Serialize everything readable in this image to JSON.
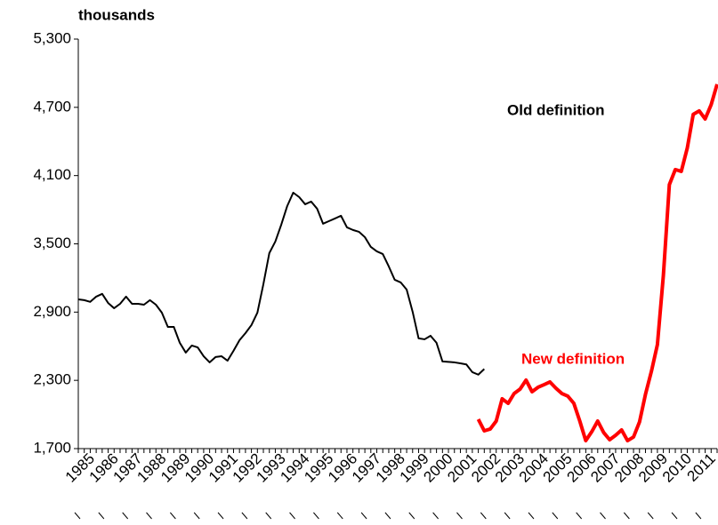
{
  "chart_data": {
    "type": "line",
    "y_label": "thousands",
    "ylim": [
      1700,
      5300
    ],
    "yticks": [
      {
        "value": 1700,
        "label": "1,700"
      },
      {
        "value": 2300,
        "label": "2,300"
      },
      {
        "value": 2900,
        "label": "2,900"
      },
      {
        "value": 3500,
        "label": "3,500"
      },
      {
        "value": 4100,
        "label": "4,100"
      },
      {
        "value": 4700,
        "label": "4,700"
      },
      {
        "value": 5300,
        "label": "5,300"
      }
    ],
    "categories": [
      "1985",
      null,
      null,
      null,
      "1986",
      null,
      null,
      null,
      "1987",
      null,
      null,
      null,
      "1988",
      null,
      null,
      null,
      "1989",
      null,
      null,
      null,
      "1990",
      null,
      null,
      null,
      "1991",
      null,
      null,
      null,
      "1992",
      null,
      null,
      null,
      "1993",
      null,
      null,
      null,
      "1994",
      null,
      null,
      null,
      "1995",
      null,
      null,
      null,
      "1996",
      null,
      null,
      null,
      "1997",
      null,
      null,
      null,
      "1998",
      null,
      null,
      null,
      "1999",
      null,
      null,
      null,
      "2000",
      null,
      null,
      null,
      "2001",
      null,
      null,
      null,
      "2002",
      null,
      null,
      null,
      "2003",
      null,
      null,
      null,
      "2004",
      null,
      null,
      null,
      "2005",
      null,
      null,
      null,
      "2006",
      null,
      null,
      null,
      "2007",
      null,
      null,
      null,
      "2008",
      null,
      null,
      null,
      "2009",
      null,
      null,
      null,
      "2010",
      null,
      null,
      null,
      "2011",
      null,
      null,
      null
    ],
    "series": [
      {
        "name": "Old definition",
        "color": "#000000",
        "values": [
          3012,
          3005,
          2990,
          3036,
          3060,
          2980,
          2934,
          2973,
          3036,
          2973,
          2973,
          2965,
          3005,
          2965,
          2895,
          2770,
          2770,
          2630,
          2544,
          2606,
          2590,
          2512,
          2458,
          2505,
          2512,
          2473,
          2560,
          2653,
          2715,
          2786,
          2895,
          3145,
          3419,
          3520,
          3669,
          3833,
          3950,
          3911,
          3848,
          3872,
          3809,
          3677,
          3700,
          3723,
          3747,
          3645,
          3622,
          3606,
          3559,
          3473,
          3434,
          3411,
          3302,
          3184,
          3161,
          3098,
          2903,
          2669,
          2661,
          2692,
          2630,
          2466,
          2462,
          2458,
          2450,
          2440,
          2372,
          2350,
          2400,
          null,
          null,
          null,
          null,
          null,
          null,
          null,
          null,
          null,
          null,
          null,
          null,
          null,
          null,
          null,
          null,
          null,
          null,
          null,
          null,
          null,
          null,
          null,
          null,
          null,
          null,
          null,
          null,
          null,
          null,
          null,
          null,
          null,
          null,
          null,
          null,
          null,
          null,
          null
        ]
      },
      {
        "name": "New definition",
        "color": "#ff0000",
        "values": [
          null,
          null,
          null,
          null,
          null,
          null,
          null,
          null,
          null,
          null,
          null,
          null,
          null,
          null,
          null,
          null,
          null,
          null,
          null,
          null,
          null,
          null,
          null,
          null,
          null,
          null,
          null,
          null,
          null,
          null,
          null,
          null,
          null,
          null,
          null,
          null,
          null,
          null,
          null,
          null,
          null,
          null,
          null,
          null,
          null,
          null,
          null,
          null,
          null,
          null,
          null,
          null,
          null,
          null,
          null,
          null,
          null,
          null,
          null,
          null,
          null,
          null,
          null,
          null,
          null,
          null,
          null,
          1958,
          1856,
          1872,
          1942,
          2138,
          2098,
          2184,
          2223,
          2302,
          2200,
          2239,
          2262,
          2286,
          2231,
          2184,
          2161,
          2098,
          1942,
          1770,
          1848,
          1942,
          1841,
          1778,
          1817,
          1864,
          1770,
          1802,
          1934,
          2177,
          2380,
          2614,
          3223,
          4020,
          4153,
          4137,
          4341,
          4638,
          4669,
          4598,
          4723,
          4903
        ]
      }
    ]
  }
}
